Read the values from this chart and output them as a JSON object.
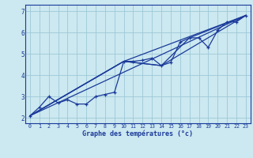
{
  "xlabel": "Graphe des températures (°c)",
  "xlim": [
    -0.5,
    23.5
  ],
  "ylim": [
    1.75,
    7.3
  ],
  "yticks": [
    2,
    3,
    4,
    5,
    6,
    7
  ],
  "xticks": [
    0,
    1,
    2,
    3,
    4,
    5,
    6,
    7,
    8,
    9,
    10,
    11,
    12,
    13,
    14,
    15,
    16,
    17,
    18,
    19,
    20,
    21,
    22,
    23
  ],
  "bg_color": "#cce8f0",
  "line_color": "#1a3a9a",
  "grid_color": "#9dc8d8",
  "line1_x": [
    0,
    1,
    2,
    3,
    4,
    5,
    6,
    7,
    8,
    9,
    10,
    11,
    12,
    13,
    14,
    15,
    16,
    17,
    18,
    19,
    20,
    21,
    22,
    23
  ],
  "line1_y": [
    2.1,
    2.5,
    3.0,
    2.7,
    2.85,
    2.65,
    2.65,
    3.0,
    3.1,
    3.2,
    4.65,
    4.65,
    4.7,
    4.8,
    4.45,
    4.6,
    5.55,
    5.75,
    5.75,
    5.3,
    6.1,
    6.5,
    6.5,
    6.8
  ],
  "line2_x": [
    0,
    23
  ],
  "line2_y": [
    2.1,
    6.8
  ],
  "line3_x": [
    0,
    10,
    23
  ],
  "line3_y": [
    2.1,
    4.65,
    6.8
  ],
  "line4_x": [
    0,
    10,
    14,
    23
  ],
  "line4_y": [
    2.1,
    4.65,
    4.45,
    6.8
  ],
  "line5_x": [
    0,
    10,
    14,
    17,
    23
  ],
  "line5_y": [
    2.1,
    4.65,
    4.45,
    5.75,
    6.8
  ]
}
